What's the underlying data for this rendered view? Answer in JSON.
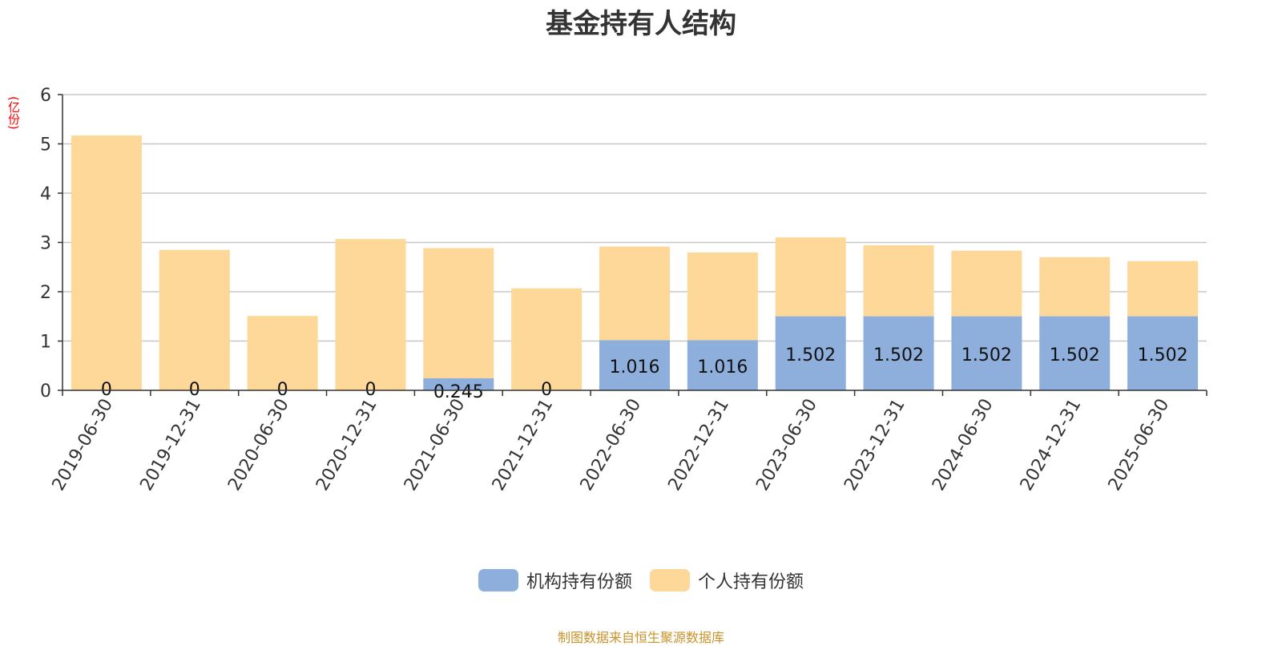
{
  "colors": {
    "institutional": "#8eafdb",
    "individual": "#fed899",
    "grid": "#c8c8c8",
    "axis": "#333333",
    "unit": "#ff0000",
    "source": "#c8922a"
  },
  "source_note": "制图数据来自恒生聚源数据库",
  "chart_data": {
    "type": "bar",
    "stacked": true,
    "title": "基金持有人结构",
    "ylabel": "(亿份)",
    "ylim": [
      0,
      6
    ],
    "yticks": [
      "0",
      "1",
      "2",
      "3",
      "4",
      "5",
      "6"
    ],
    "grid": true,
    "legend_position": "bottom-center",
    "categories": [
      "2019-06-30",
      "2019-12-31",
      "2020-06-30",
      "2020-12-31",
      "2021-06-30",
      "2021-12-31",
      "2022-06-30",
      "2022-12-31",
      "2023-06-30",
      "2023-12-31",
      "2024-06-30",
      "2024-12-31",
      "2025-06-30"
    ],
    "series": [
      {
        "name": "机构持有份额",
        "values": [
          0,
          0,
          0,
          0,
          0.245,
          0,
          1.016,
          1.016,
          1.502,
          1.502,
          1.502,
          1.502,
          1.502
        ],
        "labels": [
          "0",
          "0",
          "0",
          "0",
          "0.245",
          "0",
          "1.016",
          "1.016",
          "1.502",
          "1.502",
          "1.502",
          "1.502",
          "1.502"
        ]
      },
      {
        "name": "个人持有份额",
        "values": [
          5.17,
          2.85,
          1.51,
          3.07,
          2.64,
          2.07,
          1.9,
          1.78,
          1.6,
          1.44,
          1.33,
          1.2,
          1.12
        ]
      }
    ]
  }
}
